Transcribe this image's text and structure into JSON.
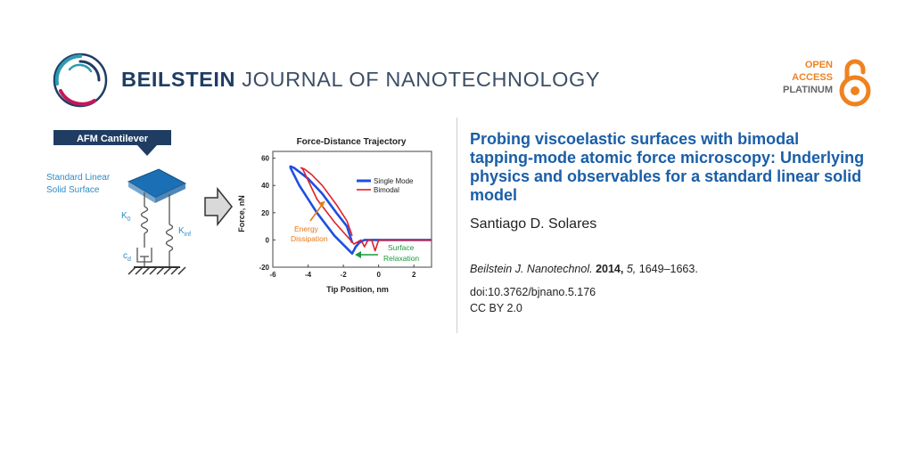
{
  "journal": {
    "name_bold": "BEILSTEIN",
    "name_light": "JOURNAL OF NANOTECHNOLOGY"
  },
  "open_access": {
    "line1": "OPEN",
    "line2": "ACCESS",
    "line3": "PLATINUM"
  },
  "article": {
    "title": "Probing viscoelastic surfaces with bimodal tapping-mode atomic force microscopy: Underlying physics and observables for a standard linear solid model",
    "author": "Santiago D. Solares",
    "journal_abbrev": "Beilstein J. Nanotechnol.",
    "year": "2014,",
    "volume": "5,",
    "pages": "1649–1663.",
    "doi": "doi:10.3762/bjnano.5.176",
    "license": "CC BY 2.0"
  },
  "schematic": {
    "banner": "AFM Cantilever",
    "surface_label_1": "Standard Linear",
    "surface_label_2": "Solid Surface",
    "k0": "K",
    "k0_sub": "0",
    "kinf": "K",
    "kinf_sub": "inf",
    "cd": "c",
    "cd_sub": "d"
  },
  "chart_data": {
    "type": "line",
    "title": "Force-Distance Trajectory",
    "xlabel": "Tip Position, nm",
    "ylabel": "Force, nN",
    "xlim": [
      -6,
      3
    ],
    "ylim": [
      -20,
      65
    ],
    "xticks": [
      -6,
      -4,
      -2,
      0,
      2
    ],
    "yticks": [
      -20,
      0,
      20,
      40,
      60
    ],
    "xtick_labels": [
      "-6",
      "-4",
      "-2",
      "0",
      "2"
    ],
    "ytick_labels": [
      "-20",
      "0",
      "20",
      "40",
      "60"
    ],
    "legend_position": "top-right",
    "series": [
      {
        "name": "Single Mode",
        "color": "#1f4fe0",
        "x": [
          3.0,
          1.0,
          0.0,
          -0.4,
          -0.8,
          -1.1,
          -1.3,
          -1.5,
          -2.5,
          -3.5,
          -4.5,
          -5.0,
          -5.0,
          -4.8,
          -4.5,
          -4.0,
          -3.2,
          -2.4,
          -1.8,
          -1.5
        ],
        "y": [
          0,
          0,
          0,
          0,
          0,
          -2,
          -5,
          -10,
          3,
          20,
          40,
          53,
          54,
          53,
          50,
          45,
          34,
          20,
          10,
          -2
        ]
      },
      {
        "name": "Bimodal",
        "color": "#e0202a",
        "x": [
          3.0,
          1.0,
          0.0,
          -0.2,
          -0.4,
          -0.6,
          -0.8,
          -1.0,
          -1.4,
          -2.5,
          -3.5,
          -4.3,
          -4.4,
          -4.2,
          -3.8,
          -3.2,
          -2.4,
          -1.8,
          -1.5
        ],
        "y": [
          0,
          0,
          0,
          -8,
          0,
          0,
          -5,
          0,
          -3,
          13,
          30,
          52,
          53,
          52,
          48,
          40,
          26,
          14,
          3
        ]
      }
    ],
    "annotations": [
      {
        "text_1": "Energy",
        "text_2": "Dissipation",
        "color": "#e07a1e"
      },
      {
        "text_1": "Surface",
        "text_2": "Relaxation",
        "color": "#1a9a3a"
      }
    ]
  },
  "colors": {
    "title_blue": "#1a5ea8",
    "journal_navy": "#1f3d63",
    "oa_orange": "#f0821e"
  },
  "icons": {
    "logo": "beilstein-ring-logo",
    "open_access": "open-lock-icon",
    "arrow": "right-arrow-icon"
  }
}
